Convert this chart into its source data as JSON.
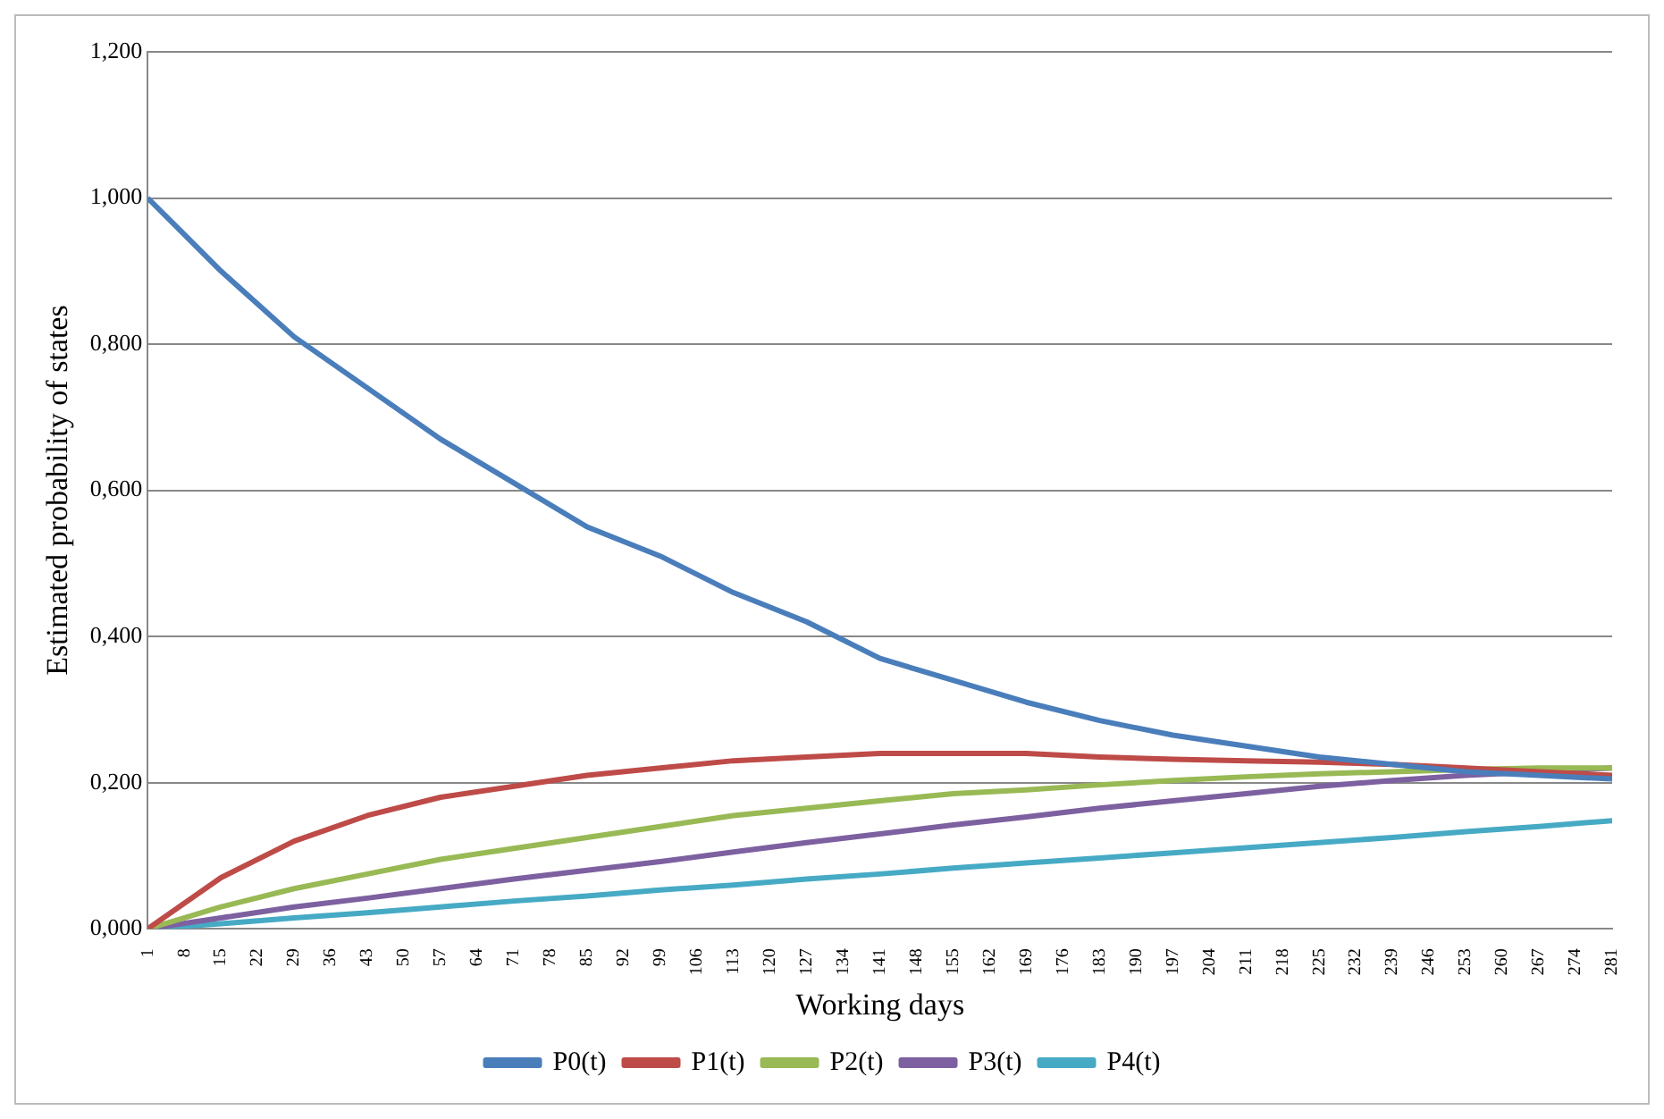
{
  "chart_data": {
    "type": "line",
    "xlabel": "Working days",
    "ylabel": "Estimated probability of states",
    "x": [
      1,
      15,
      29,
      43,
      57,
      71,
      85,
      99,
      113,
      127,
      141,
      155,
      169,
      183,
      197,
      211,
      225,
      239,
      253,
      267,
      281
    ],
    "series": [
      {
        "name": "P0(t)",
        "color": "#4a7ebb",
        "values": [
          1.0,
          0.9,
          0.81,
          0.74,
          0.67,
          0.61,
          0.55,
          0.51,
          0.46,
          0.42,
          0.37,
          0.34,
          0.31,
          0.285,
          0.265,
          0.25,
          0.235,
          0.225,
          0.215,
          0.21,
          0.205
        ]
      },
      {
        "name": "P1(t)",
        "color": "#be4b48",
        "values": [
          0,
          0.07,
          0.12,
          0.155,
          0.18,
          0.195,
          0.21,
          0.22,
          0.23,
          0.235,
          0.24,
          0.24,
          0.24,
          0.235,
          0.232,
          0.23,
          0.228,
          0.225,
          0.22,
          0.215,
          0.21
        ]
      },
      {
        "name": "P2(t)",
        "color": "#98b954",
        "values": [
          0,
          0.03,
          0.055,
          0.075,
          0.095,
          0.11,
          0.125,
          0.14,
          0.155,
          0.165,
          0.175,
          0.185,
          0.19,
          0.197,
          0.203,
          0.208,
          0.212,
          0.215,
          0.218,
          0.22,
          0.22
        ]
      },
      {
        "name": "P3(t)",
        "color": "#7d60a0",
        "values": [
          0,
          0.015,
          0.03,
          0.042,
          0.055,
          0.068,
          0.08,
          0.092,
          0.105,
          0.118,
          0.13,
          0.142,
          0.153,
          0.165,
          0.175,
          0.185,
          0.195,
          0.203,
          0.21,
          0.215,
          0.22
        ]
      },
      {
        "name": "P4(t)",
        "color": "#46aac5",
        "values": [
          0,
          0.007,
          0.015,
          0.022,
          0.03,
          0.038,
          0.045,
          0.053,
          0.06,
          0.068,
          0.075,
          0.083,
          0.09,
          0.097,
          0.104,
          0.111,
          0.118,
          0.125,
          0.133,
          0.14,
          0.148
        ]
      }
    ],
    "xlim": [
      1,
      281
    ],
    "xticks": [
      1,
      8,
      15,
      22,
      29,
      36,
      43,
      50,
      57,
      64,
      71,
      78,
      85,
      92,
      99,
      106,
      113,
      120,
      127,
      134,
      141,
      148,
      155,
      162,
      169,
      176,
      183,
      190,
      197,
      204,
      211,
      218,
      225,
      232,
      239,
      246,
      253,
      260,
      267,
      274,
      281
    ],
    "ylim": [
      0,
      1.2
    ],
    "yticks": [
      {
        "value": 0,
        "label": "0,000"
      },
      {
        "value": 0.2,
        "label": "0,200"
      },
      {
        "value": 0.4,
        "label": "0,400"
      },
      {
        "value": 0.6,
        "label": "0,600"
      },
      {
        "value": 0.8,
        "label": "0,800"
      },
      {
        "value": 1.0,
        "label": "1,000"
      },
      {
        "value": 1.2,
        "label": "1,200"
      }
    ],
    "grid": "y",
    "legend": "bottom",
    "marker": "none",
    "line_style": "solid"
  }
}
